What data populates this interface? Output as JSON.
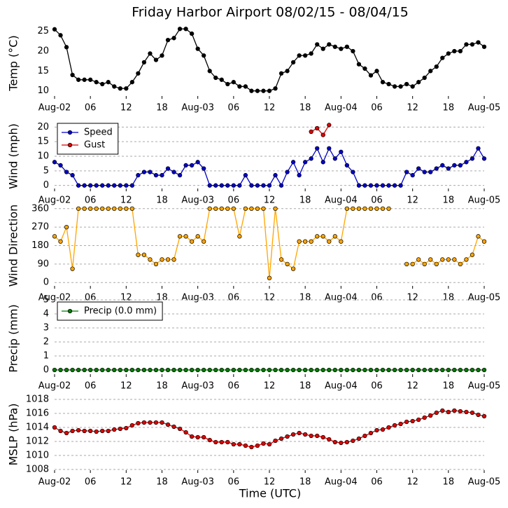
{
  "chart_data": [
    {
      "type": "line",
      "title": "Friday Harbor Airport 08/02/15 - 08/04/15",
      "ylabel": "Temp (°C)",
      "grid": false,
      "x": [
        0,
        1,
        2,
        3,
        4,
        5,
        6,
        7,
        8,
        9,
        10,
        11,
        12,
        13,
        14,
        15,
        16,
        17,
        18,
        19,
        20,
        21,
        22,
        23,
        24,
        25,
        26,
        27,
        28,
        29,
        30,
        31,
        32,
        33,
        34,
        35,
        36,
        37,
        38,
        39,
        40,
        41,
        42,
        43,
        44,
        45,
        46,
        47,
        48,
        49,
        50,
        51,
        52,
        53,
        54,
        55,
        56,
        57,
        58,
        59,
        60,
        61,
        62,
        63,
        64,
        65,
        66,
        67,
        68,
        69,
        70,
        71,
        72
      ],
      "xlim": [
        0,
        72
      ],
      "xticks": [
        {
          "value": 0,
          "label": "Aug-02"
        },
        {
          "value": 6,
          "label": "06"
        },
        {
          "value": 12,
          "label": "12"
        },
        {
          "value": 18,
          "label": "18"
        },
        {
          "value": 24,
          "label": "Aug-03"
        },
        {
          "value": 30,
          "label": "06"
        },
        {
          "value": 36,
          "label": "12"
        },
        {
          "value": 42,
          "label": "18"
        },
        {
          "value": 48,
          "label": "Aug-04"
        },
        {
          "value": 54,
          "label": "06"
        },
        {
          "value": 60,
          "label": "12"
        },
        {
          "value": 66,
          "label": "18"
        },
        {
          "value": 72,
          "label": "Aug-05"
        }
      ],
      "ylim": [
        8,
        26
      ],
      "yticks": [
        10,
        15,
        20,
        25
      ],
      "series": [
        {
          "color": "#000000",
          "values": [
            25.5,
            24,
            21,
            14,
            12.8,
            12.8,
            12.8,
            12.2,
            11.7,
            12.2,
            11.1,
            10.6,
            10.6,
            12.2,
            14.4,
            17.2,
            19.4,
            17.8,
            18.9,
            22.8,
            23.3,
            25.6,
            25.6,
            24.4,
            20.6,
            18.9,
            15,
            13.3,
            12.8,
            11.7,
            12.2,
            11.1,
            11.1,
            10,
            10,
            10,
            10,
            10.6,
            14.4,
            15,
            17.2,
            18.9,
            18.9,
            19.4,
            21.7,
            20.6,
            21.7,
            21.1,
            20.6,
            21.1,
            20,
            16.7,
            15.6,
            13.9,
            15,
            12.2,
            11.7,
            11.1,
            11.1,
            11.7,
            11.1,
            12.2,
            13.3,
            15,
            16.1,
            18.3,
            19.4,
            20,
            20,
            21.7,
            21.7,
            22.2,
            21.1
          ]
        }
      ]
    },
    {
      "type": "line",
      "ylabel": "Wind (mph)",
      "grid": true,
      "legend": "upper left",
      "x": [
        0,
        1,
        2,
        3,
        4,
        5,
        6,
        7,
        8,
        9,
        10,
        11,
        12,
        13,
        14,
        15,
        16,
        17,
        18,
        19,
        20,
        21,
        22,
        23,
        24,
        25,
        26,
        27,
        28,
        29,
        30,
        31,
        32,
        33,
        34,
        35,
        36,
        37,
        38,
        39,
        40,
        41,
        42,
        43,
        44,
        45,
        46,
        47,
        48,
        49,
        50,
        51,
        52,
        53,
        54,
        55,
        56,
        57,
        58,
        59,
        60,
        61,
        62,
        63,
        64,
        65,
        66,
        67,
        68,
        69,
        70,
        71,
        72
      ],
      "xlim": [
        0,
        72
      ],
      "xticks": [
        {
          "value": 0,
          "label": "Aug-02"
        },
        {
          "value": 6,
          "label": "06"
        },
        {
          "value": 12,
          "label": "12"
        },
        {
          "value": 18,
          "label": "18"
        },
        {
          "value": 24,
          "label": "Aug-03"
        },
        {
          "value": 30,
          "label": "06"
        },
        {
          "value": 36,
          "label": "12"
        },
        {
          "value": 42,
          "label": "18"
        },
        {
          "value": 48,
          "label": "Aug-04"
        },
        {
          "value": 54,
          "label": "06"
        },
        {
          "value": 60,
          "label": "12"
        },
        {
          "value": 66,
          "label": "18"
        },
        {
          "value": 72,
          "label": "Aug-05"
        }
      ],
      "ylim": [
        -2,
        22
      ],
      "yticks": [
        0,
        5,
        10,
        15,
        20
      ],
      "series": [
        {
          "name": "Speed",
          "color": "#0000cc",
          "values": [
            8,
            6.9,
            4.6,
            3.5,
            0,
            0,
            0,
            0,
            0,
            0,
            0,
            0,
            0,
            0,
            3.5,
            4.6,
            4.6,
            3.5,
            3.5,
            5.8,
            4.6,
            3.5,
            6.9,
            6.9,
            8,
            5.8,
            0,
            0,
            0,
            0,
            0,
            0,
            3.5,
            0,
            0,
            0,
            0,
            3.5,
            0,
            4.6,
            8,
            3.5,
            8,
            9.2,
            12.7,
            8,
            12.7,
            9.2,
            11.5,
            6.9,
            4.6,
            0,
            0,
            0,
            0,
            0,
            0,
            0,
            0,
            4.6,
            3.5,
            5.8,
            4.6,
            4.6,
            5.8,
            6.9,
            5.8,
            6.9,
            6.9,
            8,
            9.2,
            12.7,
            9.2
          ]
        },
        {
          "name": "Gust",
          "color": "#dd0000",
          "values": [
            null,
            null,
            null,
            null,
            null,
            null,
            null,
            null,
            null,
            null,
            null,
            null,
            null,
            null,
            null,
            null,
            null,
            null,
            null,
            null,
            null,
            null,
            null,
            null,
            null,
            null,
            null,
            null,
            null,
            null,
            null,
            null,
            null,
            null,
            null,
            null,
            null,
            null,
            null,
            null,
            null,
            null,
            null,
            18.4,
            19.6,
            17.3,
            20.7,
            null,
            null,
            null,
            null,
            null,
            null,
            null,
            null,
            null,
            null,
            null,
            null,
            null,
            null,
            null,
            null,
            null,
            null,
            null,
            null,
            null,
            null,
            null,
            null,
            null,
            null
          ]
        }
      ]
    },
    {
      "type": "line",
      "ylabel": "Wind Direction",
      "grid": true,
      "x": [
        0,
        1,
        2,
        3,
        4,
        5,
        6,
        7,
        8,
        9,
        10,
        11,
        12,
        13,
        14,
        15,
        16,
        17,
        18,
        19,
        20,
        21,
        22,
        23,
        24,
        25,
        26,
        27,
        28,
        29,
        30,
        31,
        32,
        33,
        34,
        35,
        36,
        37,
        38,
        39,
        40,
        41,
        42,
        43,
        44,
        45,
        46,
        47,
        48,
        49,
        50,
        51,
        52,
        53,
        54,
        55,
        56,
        57,
        58,
        59,
        60,
        61,
        62,
        63,
        64,
        65,
        66,
        67,
        68,
        69,
        70,
        71,
        72
      ],
      "xlim": [
        0,
        72
      ],
      "xticks": [
        {
          "value": 0,
          "label": "Aug-02"
        },
        {
          "value": 6,
          "label": "06"
        },
        {
          "value": 12,
          "label": "12"
        },
        {
          "value": 18,
          "label": "18"
        },
        {
          "value": 24,
          "label": "Aug-03"
        },
        {
          "value": 30,
          "label": "06"
        },
        {
          "value": 36,
          "label": "12"
        },
        {
          "value": 42,
          "label": "18"
        },
        {
          "value": 48,
          "label": "Aug-04"
        },
        {
          "value": 54,
          "label": "06"
        },
        {
          "value": 60,
          "label": "12"
        },
        {
          "value": 66,
          "label": "18"
        },
        {
          "value": 72,
          "label": "Aug-05"
        }
      ],
      "ylim": [
        -30,
        390
      ],
      "yticks": [
        0,
        90,
        180,
        270,
        360
      ],
      "series": [
        {
          "color": "#ffa500",
          "values": [
            225,
            200,
            270,
            67,
            360,
            360,
            360,
            360,
            360,
            360,
            360,
            360,
            360,
            360,
            135,
            135,
            112,
            90,
            112,
            112,
            112,
            225,
            225,
            200,
            225,
            200,
            360,
            360,
            360,
            360,
            360,
            225,
            360,
            360,
            360,
            360,
            22,
            360,
            112,
            90,
            67,
            200,
            200,
            200,
            225,
            225,
            200,
            225,
            200,
            360,
            360,
            360,
            360,
            360,
            360,
            360,
            360,
            null,
            null,
            90,
            90,
            112,
            90,
            112,
            90,
            112,
            112,
            112,
            90,
            112,
            135,
            225,
            200
          ]
        }
      ]
    },
    {
      "type": "line",
      "ylabel": "Precip (mm)",
      "grid": true,
      "legend": "upper left",
      "x": [
        0,
        1,
        2,
        3,
        4,
        5,
        6,
        7,
        8,
        9,
        10,
        11,
        12,
        13,
        14,
        15,
        16,
        17,
        18,
        19,
        20,
        21,
        22,
        23,
        24,
        25,
        26,
        27,
        28,
        29,
        30,
        31,
        32,
        33,
        34,
        35,
        36,
        37,
        38,
        39,
        40,
        41,
        42,
        43,
        44,
        45,
        46,
        47,
        48,
        49,
        50,
        51,
        52,
        53,
        54,
        55,
        56,
        57,
        58,
        59,
        60,
        61,
        62,
        63,
        64,
        65,
        66,
        67,
        68,
        69,
        70,
        71,
        72
      ],
      "xlim": [
        0,
        72
      ],
      "xticks": [
        {
          "value": 0,
          "label": "Aug-02"
        },
        {
          "value": 6,
          "label": "06"
        },
        {
          "value": 12,
          "label": "12"
        },
        {
          "value": 18,
          "label": "18"
        },
        {
          "value": 24,
          "label": "Aug-03"
        },
        {
          "value": 30,
          "label": "06"
        },
        {
          "value": 36,
          "label": "12"
        },
        {
          "value": 42,
          "label": "18"
        },
        {
          "value": 48,
          "label": "Aug-04"
        },
        {
          "value": 54,
          "label": "06"
        },
        {
          "value": 60,
          "label": "12"
        },
        {
          "value": 66,
          "label": "18"
        },
        {
          "value": 72,
          "label": "Aug-05"
        }
      ],
      "ylim": [
        -0.5,
        5
      ],
      "yticks": [
        0,
        1,
        2,
        3,
        4,
        5
      ],
      "series": [
        {
          "name": "Precip (0.0 mm)",
          "color": "#007a00",
          "values": [
            0,
            0,
            0,
            0,
            0,
            0,
            0,
            0,
            0,
            0,
            0,
            0,
            0,
            0,
            0,
            0,
            0,
            0,
            0,
            0,
            0,
            0,
            0,
            0,
            0,
            0,
            0,
            0,
            0,
            0,
            0,
            0,
            0,
            0,
            0,
            0,
            0,
            0,
            0,
            0,
            0,
            0,
            0,
            0,
            0,
            0,
            0,
            0,
            0,
            0,
            0,
            0,
            0,
            0,
            0,
            0,
            0,
            0,
            0,
            0,
            0,
            0,
            0,
            0,
            0,
            0,
            0,
            0,
            0,
            0,
            0,
            0,
            0
          ]
        }
      ]
    },
    {
      "type": "line",
      "ylabel": "MSLP (hPa)",
      "xlabel": "Time (UTC)",
      "grid": true,
      "x": [
        0,
        1,
        2,
        3,
        4,
        5,
        6,
        7,
        8,
        9,
        10,
        11,
        12,
        13,
        14,
        15,
        16,
        17,
        18,
        19,
        20,
        21,
        22,
        23,
        24,
        25,
        26,
        27,
        28,
        29,
        30,
        31,
        32,
        33,
        34,
        35,
        36,
        37,
        38,
        39,
        40,
        41,
        42,
        43,
        44,
        45,
        46,
        47,
        48,
        49,
        50,
        51,
        52,
        53,
        54,
        55,
        56,
        57,
        58,
        59,
        60,
        61,
        62,
        63,
        64,
        65,
        66,
        67,
        68,
        69,
        70,
        71,
        72
      ],
      "xlim": [
        0,
        72
      ],
      "xticks": [
        {
          "value": 0,
          "label": "Aug-02"
        },
        {
          "value": 6,
          "label": "06"
        },
        {
          "value": 12,
          "label": "12"
        },
        {
          "value": 18,
          "label": "18"
        },
        {
          "value": 24,
          "label": "Aug-03"
        },
        {
          "value": 30,
          "label": "06"
        },
        {
          "value": 36,
          "label": "12"
        },
        {
          "value": 42,
          "label": "18"
        },
        {
          "value": 48,
          "label": "Aug-04"
        },
        {
          "value": 54,
          "label": "06"
        },
        {
          "value": 60,
          "label": "12"
        },
        {
          "value": 66,
          "label": "18"
        },
        {
          "value": 72,
          "label": "Aug-05"
        }
      ],
      "ylim": [
        1007.5,
        1018.5
      ],
      "yticks": [
        1008,
        1010,
        1012,
        1014,
        1016,
        1018
      ],
      "series": [
        {
          "color": "#dd0000",
          "values": [
            1014,
            1013.5,
            1013.2,
            1013.5,
            1013.6,
            1013.5,
            1013.5,
            1013.4,
            1013.5,
            1013.5,
            1013.7,
            1013.8,
            1013.9,
            1014.3,
            1014.6,
            1014.7,
            1014.7,
            1014.7,
            1014.7,
            1014.4,
            1014.1,
            1013.8,
            1013.3,
            1012.7,
            1012.6,
            1012.6,
            1012.2,
            1011.9,
            1011.9,
            1011.9,
            1011.6,
            1011.6,
            1011.4,
            1011.2,
            1011.4,
            1011.7,
            1011.6,
            1012.1,
            1012.4,
            1012.7,
            1013,
            1013.2,
            1013,
            1012.8,
            1012.8,
            1012.6,
            1012.3,
            1011.9,
            1011.8,
            1011.9,
            1012.1,
            1012.4,
            1012.8,
            1013.2,
            1013.6,
            1013.7,
            1014,
            1014.3,
            1014.5,
            1014.8,
            1014.9,
            1015.1,
            1015.4,
            1015.7,
            1016.1,
            1016.4,
            1016.2,
            1016.4,
            1016.3,
            1016.2,
            1016.1,
            1015.8,
            1015.6
          ]
        }
      ]
    }
  ]
}
